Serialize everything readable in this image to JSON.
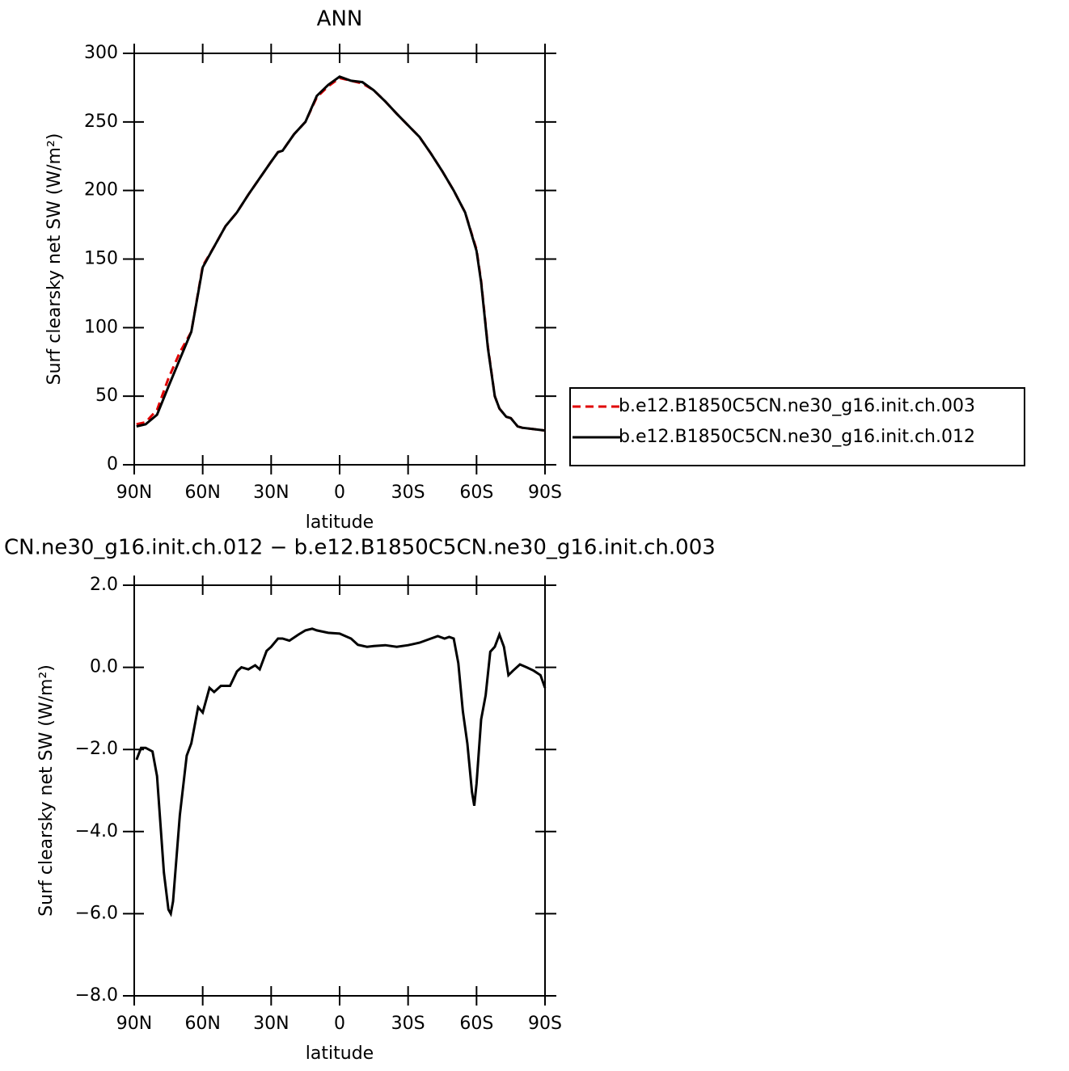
{
  "chart_data": [
    {
      "type": "line",
      "title": "ANN",
      "xlabel": "latitude",
      "ylabel": "Surf clearsky net SW (W/m²)",
      "x": [
        89,
        85,
        80,
        75,
        70,
        65,
        60,
        55,
        50,
        45,
        40,
        35,
        30,
        27,
        25,
        20,
        15,
        10,
        5,
        0,
        -5,
        -10,
        -15,
        -20,
        -25,
        -30,
        -35,
        -40,
        -45,
        -50,
        -55,
        -60,
        -62,
        -65,
        -68,
        -70,
        -73,
        -75,
        -78,
        -80,
        -85,
        -90
      ],
      "series": [
        {
          "name": "b.e12.B1850C5CN.ne30_g16.init.ch.003",
          "color": "#e00000",
          "dashed": true,
          "values": [
            29.5,
            31,
            40,
            63,
            82,
            97,
            145,
            159,
            174,
            184,
            197,
            209,
            221,
            228,
            229,
            241,
            250,
            268,
            276,
            282,
            280,
            278,
            273,
            265,
            256,
            247.5,
            239,
            227,
            214,
            200,
            184,
            157,
            134,
            86,
            50,
            41,
            35,
            34,
            28,
            27,
            26,
            25
          ]
        },
        {
          "name": "b.e12.B1850C5CN.ne30_g16.init.ch.012",
          "color": "#000000",
          "dashed": false,
          "values": [
            28,
            29.5,
            36.5,
            57,
            77,
            97,
            144,
            159,
            174,
            184,
            197,
            209,
            221,
            228,
            229,
            241,
            250,
            269,
            277,
            283,
            280,
            279,
            273,
            265,
            256,
            247.5,
            239,
            227,
            214,
            200,
            184,
            156,
            133,
            85,
            50,
            41,
            35,
            34,
            28,
            27,
            26,
            25
          ]
        }
      ],
      "xlim": [
        90,
        -90
      ],
      "xticks": [
        {
          "value": 90,
          "label": "90N"
        },
        {
          "value": 60,
          "label": "60N"
        },
        {
          "value": 30,
          "label": "30N"
        },
        0,
        {
          "value": -30,
          "label": "30S"
        },
        {
          "value": -60,
          "label": "60S"
        },
        {
          "value": -90,
          "label": "90S"
        }
      ],
      "ylim": [
        0,
        300
      ],
      "yticks": [
        0,
        50,
        100,
        150,
        200,
        250,
        300
      ],
      "legend": "right"
    },
    {
      "type": "line",
      "title": "CN.ne30_g16.init.ch.012 − b.e12.B1850C5CN.ne30_g16.init.ch.003",
      "xlabel": "latitude",
      "ylabel": "Surf clearsky net SW (W/m²)",
      "x": [
        89,
        87,
        85,
        82,
        80,
        77,
        75,
        74,
        73,
        70,
        67,
        65,
        62,
        60,
        57,
        55,
        52,
        48,
        45,
        43,
        40,
        37,
        35,
        32,
        30,
        27,
        25,
        22,
        18,
        15,
        12,
        10,
        5,
        0,
        -5,
        -8,
        -12,
        -15,
        -20,
        -25,
        -30,
        -35,
        -40,
        -43,
        -46,
        -48,
        -50,
        -52,
        -54,
        -56,
        -58,
        -59,
        -60,
        -62,
        -64,
        -66,
        -68,
        -70,
        -72,
        -74,
        -76,
        -79,
        -82,
        -85,
        -88,
        -90
      ],
      "series": [
        {
          "name": null,
          "color": "#000000",
          "dashed": false,
          "values": [
            -2.25,
            -1.96,
            -1.96,
            -2.05,
            -2.65,
            -5.0,
            -5.9,
            -6.0,
            -5.7,
            -3.6,
            -2.15,
            -1.85,
            -0.97,
            -1.1,
            -0.5,
            -0.6,
            -0.45,
            -0.45,
            -0.1,
            0.0,
            -0.05,
            0.05,
            -0.05,
            0.4,
            0.5,
            0.7,
            0.7,
            0.65,
            0.8,
            0.9,
            0.94,
            0.9,
            0.84,
            0.82,
            0.7,
            0.55,
            0.5,
            0.52,
            0.54,
            0.5,
            0.54,
            0.6,
            0.7,
            0.76,
            0.7,
            0.74,
            0.7,
            0.1,
            -1.07,
            -1.86,
            -3.04,
            -3.37,
            -2.84,
            -1.27,
            -0.68,
            0.38,
            0.5,
            0.8,
            0.5,
            -0.19,
            -0.08,
            0.07,
            0.0,
            -0.08,
            -0.19,
            -0.5
          ]
        }
      ],
      "xlim": [
        90,
        -90
      ],
      "xticks": [
        {
          "value": 90,
          "label": "90N"
        },
        {
          "value": 60,
          "label": "60N"
        },
        {
          "value": 30,
          "label": "30N"
        },
        0,
        {
          "value": -30,
          "label": "30S"
        },
        {
          "value": -60,
          "label": "60S"
        },
        {
          "value": -90,
          "label": "90S"
        }
      ],
      "ylim": [
        -8,
        2
      ],
      "yticks": [
        {
          "value": -8,
          "label": "−8.0"
        },
        {
          "value": -6,
          "label": "−6.0"
        },
        {
          "value": -4,
          "label": "−4.0"
        },
        {
          "value": -2,
          "label": "−2.0"
        },
        {
          "value": 0,
          "label": "0.0"
        },
        {
          "value": 2,
          "label": "2.0"
        }
      ]
    }
  ]
}
